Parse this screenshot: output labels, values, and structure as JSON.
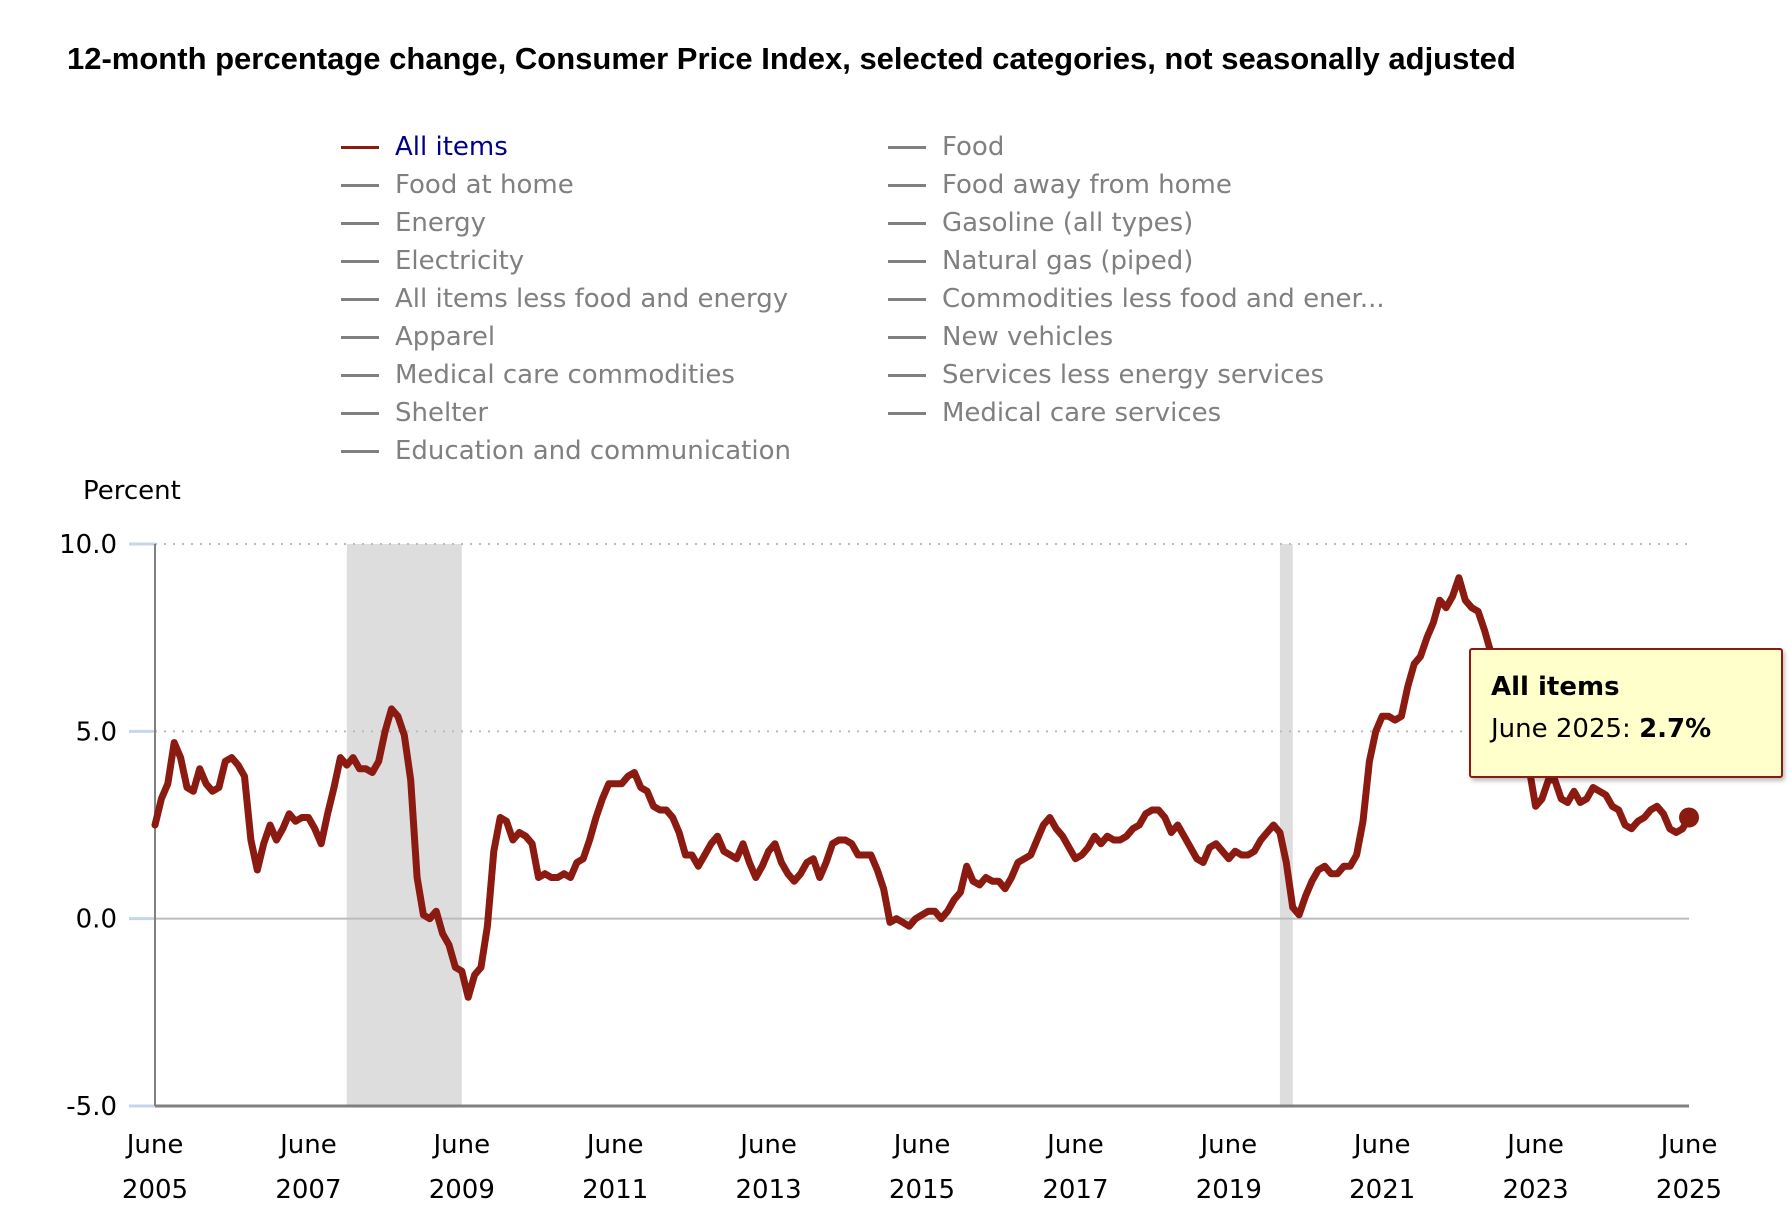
{
  "title": "12-month percentage change, Consumer Price Index, selected categories, not seasonally adjusted",
  "legend": {
    "left": [
      "All items",
      "Food at home",
      "Energy",
      "Electricity",
      "All items less food and energy",
      "Apparel",
      "Medical care commodities",
      "Shelter",
      "Education and communication"
    ],
    "right": [
      "Food",
      "Food away from home",
      "Gasoline (all types)",
      "Natural gas (piped)",
      "Commodities less food and ener...",
      "New vehicles",
      "Services less energy services",
      "Medical care services"
    ],
    "active": "All items"
  },
  "tooltip": {
    "title": "All items",
    "label": "June 2025:",
    "value": "2.7%"
  },
  "colors": {
    "series": "#8b1a10",
    "legend_inactive": "#808080",
    "legend_active": "#00008b",
    "recession": "#dddddd",
    "tooltip_bg": "#ffffcc"
  },
  "chart_data": {
    "type": "line",
    "ylabel": "Percent",
    "ylim": [
      -5,
      10
    ],
    "yticks": [
      "10.0",
      "5.0",
      "0.0",
      "-5.0"
    ],
    "ytick_values": [
      10,
      5,
      0,
      -5
    ],
    "xticks": [
      [
        "June",
        "2005"
      ],
      [
        "June",
        "2007"
      ],
      [
        "June",
        "2009"
      ],
      [
        "June",
        "2011"
      ],
      [
        "June",
        "2013"
      ],
      [
        "June",
        "2015"
      ],
      [
        "June",
        "2017"
      ],
      [
        "June",
        "2019"
      ],
      [
        "June",
        "2021"
      ],
      [
        "June",
        "2023"
      ],
      [
        "June",
        "2025"
      ]
    ],
    "start": "2005-06",
    "end": "2025-06",
    "frequency": "monthly",
    "grid": "dotted horizontal at 5.0 and 10.0",
    "recessions": [
      [
        "2007-12",
        "2009-06"
      ],
      [
        "2020-02",
        "2020-04"
      ]
    ],
    "series": [
      {
        "name": "All items",
        "values": [
          2.5,
          3.2,
          3.6,
          4.7,
          4.3,
          3.5,
          3.4,
          4.0,
          3.6,
          3.4,
          3.5,
          4.2,
          4.3,
          4.1,
          3.8,
          2.1,
          1.3,
          2.0,
          2.5,
          2.1,
          2.4,
          2.8,
          2.6,
          2.7,
          2.7,
          2.4,
          2.0,
          2.8,
          3.5,
          4.3,
          4.1,
          4.3,
          4.0,
          4.0,
          3.9,
          4.2,
          5.0,
          5.6,
          5.4,
          4.9,
          3.7,
          1.1,
          0.1,
          0.0,
          0.2,
          -0.4,
          -0.7,
          -1.3,
          -1.4,
          -2.1,
          -1.5,
          -1.3,
          -0.2,
          1.8,
          2.7,
          2.6,
          2.1,
          2.3,
          2.2,
          2.0,
          1.1,
          1.2,
          1.1,
          1.1,
          1.2,
          1.1,
          1.5,
          1.6,
          2.1,
          2.7,
          3.2,
          3.6,
          3.6,
          3.6,
          3.8,
          3.9,
          3.5,
          3.4,
          3.0,
          2.9,
          2.9,
          2.7,
          2.3,
          1.7,
          1.7,
          1.4,
          1.7,
          2.0,
          2.2,
          1.8,
          1.7,
          1.6,
          2.0,
          1.5,
          1.1,
          1.4,
          1.8,
          2.0,
          1.5,
          1.2,
          1.0,
          1.2,
          1.5,
          1.6,
          1.1,
          1.5,
          2.0,
          2.1,
          2.1,
          2.0,
          1.7,
          1.7,
          1.7,
          1.3,
          0.8,
          -0.1,
          0.0,
          -0.1,
          -0.2,
          0.0,
          0.1,
          0.2,
          0.2,
          0.0,
          0.2,
          0.5,
          0.7,
          1.4,
          1.0,
          0.9,
          1.1,
          1.0,
          1.0,
          0.8,
          1.1,
          1.5,
          1.6,
          1.7,
          2.1,
          2.5,
          2.7,
          2.4,
          2.2,
          1.9,
          1.6,
          1.7,
          1.9,
          2.2,
          2.0,
          2.2,
          2.1,
          2.1,
          2.2,
          2.4,
          2.5,
          2.8,
          2.9,
          2.9,
          2.7,
          2.3,
          2.5,
          2.2,
          1.9,
          1.6,
          1.5,
          1.9,
          2.0,
          1.8,
          1.6,
          1.8,
          1.7,
          1.7,
          1.8,
          2.1,
          2.3,
          2.5,
          2.3,
          1.5,
          0.3,
          0.1,
          0.6,
          1.0,
          1.3,
          1.4,
          1.2,
          1.2,
          1.4,
          1.4,
          1.7,
          2.6,
          4.2,
          5.0,
          5.4,
          5.4,
          5.3,
          5.4,
          6.2,
          6.8,
          7.0,
          7.5,
          7.9,
          8.5,
          8.3,
          8.6,
          9.1,
          8.5,
          8.3,
          8.2,
          7.7,
          7.1,
          6.5,
          6.4,
          6.0,
          5.0,
          4.9,
          4.0,
          3.0,
          3.2,
          3.7,
          3.7,
          3.2,
          3.1,
          3.4,
          3.1,
          3.2,
          3.5,
          3.4,
          3.3,
          3.0,
          2.9,
          2.5,
          2.4,
          2.6,
          2.7,
          2.9,
          3.0,
          2.8,
          2.4,
          2.3,
          2.4,
          2.7
        ]
      }
    ]
  }
}
